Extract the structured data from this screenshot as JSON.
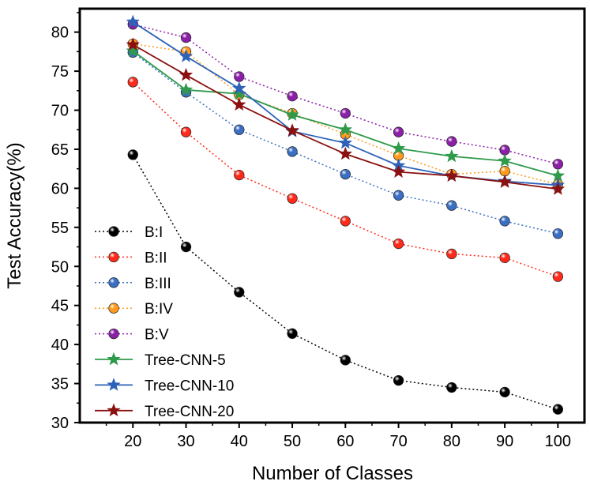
{
  "chart_data": {
    "type": "line",
    "title": "",
    "xlabel": "Number of Classes",
    "ylabel": "Test Accuracy(%)",
    "xlim": [
      10,
      105
    ],
    "ylim": [
      30,
      83
    ],
    "x": [
      20,
      30,
      40,
      50,
      60,
      70,
      80,
      90,
      100
    ],
    "x_ticks": [
      "20",
      "30",
      "40",
      "50",
      "60",
      "70",
      "80",
      "90",
      "100"
    ],
    "y_ticks": [
      "30",
      "35",
      "40",
      "45",
      "50",
      "55",
      "60",
      "65",
      "70",
      "75",
      "80"
    ],
    "grid": false,
    "legend_position": "bottom-left",
    "series": [
      {
        "name": "B:I",
        "values": [
          64.3,
          52.5,
          46.7,
          41.4,
          38.0,
          35.4,
          34.5,
          33.9,
          31.7
        ],
        "color": "#000000",
        "marker": "sphere",
        "line": "dotted"
      },
      {
        "name": "B:II",
        "values": [
          73.6,
          67.2,
          61.7,
          58.7,
          55.8,
          52.9,
          51.6,
          51.1,
          48.7
        ],
        "color": "#ff2a1a",
        "marker": "sphere",
        "line": "dotted"
      },
      {
        "name": "B:III",
        "values": [
          77.4,
          72.3,
          67.5,
          64.7,
          61.8,
          59.1,
          57.8,
          55.8,
          54.2
        ],
        "color": "#3a6fc4",
        "marker": "sphere",
        "line": "dotted"
      },
      {
        "name": "B:IV",
        "values": [
          78.5,
          77.5,
          72.0,
          69.6,
          66.9,
          64.2,
          61.8,
          62.2,
          60.5
        ],
        "color": "#ff9a1a",
        "marker": "sphere",
        "line": "dotted"
      },
      {
        "name": "B:V",
        "values": [
          81.0,
          79.3,
          74.3,
          71.8,
          69.6,
          67.2,
          66.0,
          64.9,
          63.1
        ],
        "color": "#8b1fa8",
        "marker": "sphere",
        "line": "dotted"
      },
      {
        "name": "Tree-CNN-5",
        "values": [
          77.6,
          72.6,
          72.1,
          69.4,
          67.5,
          65.1,
          64.1,
          63.5,
          61.6
        ],
        "color": "#2e9a4a",
        "marker": "star",
        "line": "solid"
      },
      {
        "name": "Tree-CNN-10",
        "values": [
          81.3,
          76.9,
          72.8,
          67.3,
          65.8,
          62.9,
          61.6,
          60.9,
          60.4
        ],
        "color": "#2d62b8",
        "marker": "star",
        "line": "solid"
      },
      {
        "name": "Tree-CNN-20",
        "values": [
          78.4,
          74.5,
          70.7,
          67.4,
          64.4,
          62.1,
          61.6,
          60.8,
          59.9
        ],
        "color": "#8b1010",
        "marker": "star",
        "line": "solid"
      }
    ]
  }
}
